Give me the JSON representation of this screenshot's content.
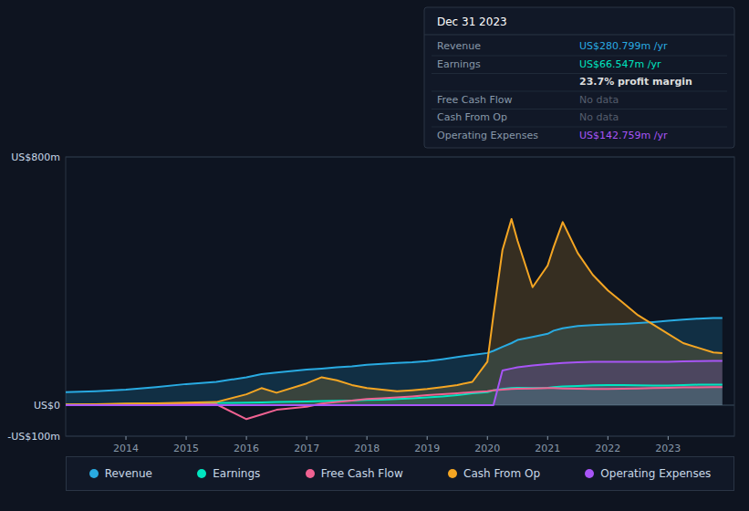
{
  "chart_data": {
    "type": "area",
    "x": [
      2013.0,
      2013.5,
      2014.0,
      2014.5,
      2015.0,
      2015.5,
      2016.0,
      2016.25,
      2016.5,
      2017.0,
      2017.25,
      2017.5,
      2017.75,
      2018.0,
      2018.25,
      2018.5,
      2018.75,
      2019.0,
      2019.25,
      2019.5,
      2019.75,
      2020.0,
      2020.1,
      2020.25,
      2020.4,
      2020.5,
      2020.75,
      2021.0,
      2021.1,
      2021.25,
      2021.5,
      2021.75,
      2022.0,
      2022.25,
      2022.5,
      2022.75,
      2023.0,
      2023.25,
      2023.5,
      2023.75,
      2023.9
    ],
    "series": [
      {
        "name": "Revenue",
        "color": "#29abe2",
        "values": [
          42,
          45,
          50,
          58,
          68,
          75,
          90,
          100,
          105,
          115,
          118,
          122,
          125,
          130,
          133,
          136,
          138,
          142,
          148,
          155,
          162,
          168,
          175,
          188,
          200,
          210,
          220,
          230,
          240,
          248,
          255,
          258,
          260,
          262,
          265,
          268,
          272,
          276,
          279,
          281,
          281
        ]
      },
      {
        "name": "Earnings",
        "color": "#00e5c0",
        "values": [
          2,
          2,
          4,
          5,
          6,
          7,
          8,
          9,
          10,
          12,
          13,
          14,
          15,
          17,
          18,
          20,
          22,
          25,
          28,
          32,
          38,
          42,
          48,
          52,
          55,
          56,
          55,
          56,
          58,
          60,
          62,
          64,
          65,
          65,
          64,
          63,
          63,
          65,
          66,
          66.5,
          66.5
        ]
      },
      {
        "name": "Free Cash Flow",
        "color": "#f06292",
        "type": "line",
        "values": [
          1,
          1,
          2,
          2,
          3,
          3,
          -45,
          -30,
          -15,
          -5,
          5,
          10,
          15,
          20,
          22,
          25,
          28,
          32,
          35,
          38,
          42,
          45,
          48,
          50,
          52,
          53,
          54,
          55,
          55,
          54,
          53,
          52,
          52,
          53,
          54,
          55,
          56,
          57,
          57,
          58,
          58
        ]
      },
      {
        "name": "Cash From Op",
        "color": "#f5a623",
        "values": [
          2,
          3,
          5,
          6,
          8,
          10,
          35,
          55,
          40,
          70,
          90,
          80,
          65,
          55,
          50,
          45,
          48,
          52,
          58,
          65,
          75,
          140,
          290,
          500,
          600,
          530,
          380,
          450,
          510,
          590,
          490,
          420,
          370,
          330,
          290,
          260,
          230,
          200,
          185,
          170,
          168
        ]
      },
      {
        "name": "Operating Expenses",
        "color": "#a855f7",
        "values": [
          0,
          0,
          0,
          0,
          0,
          0,
          0,
          0,
          0,
          0,
          0,
          0,
          0,
          0,
          0,
          0,
          0,
          0,
          0,
          0,
          0,
          0,
          0,
          112,
          118,
          122,
          128,
          132,
          134,
          136,
          138,
          140,
          140,
          140,
          140,
          140,
          140,
          141,
          142,
          143,
          143
        ]
      }
    ],
    "xlim": [
      2013.0,
      2024.1
    ],
    "xticks": [
      2014,
      2015,
      2016,
      2017,
      2018,
      2019,
      2020,
      2021,
      2022,
      2023
    ],
    "ylim": [
      -100,
      800
    ],
    "yticks": [
      {
        "value": -100,
        "label": "-US$100m"
      },
      {
        "value": 0,
        "label": "US$0"
      },
      {
        "value": 800,
        "label": "US$800m"
      }
    ],
    "grid": true,
    "legend": "bottom",
    "annotation": {
      "title": "Dec 31 2023",
      "rows": [
        {
          "label": "Revenue",
          "value": "US$280.799m /yr",
          "color": "#29abe2"
        },
        {
          "label": "Earnings",
          "value": "US$66.547m /yr",
          "color": "#00e5c0"
        },
        {
          "value": "23.7% profit margin",
          "color": "#dddddd"
        },
        {
          "label": "Free Cash Flow",
          "value": "No data",
          "color": "#555e6d"
        },
        {
          "label": "Cash From Op",
          "value": "No data",
          "color": "#555e6d"
        },
        {
          "label": "Operating Expenses",
          "value": "US$142.759m /yr",
          "color": "#a855f7"
        }
      ]
    }
  }
}
